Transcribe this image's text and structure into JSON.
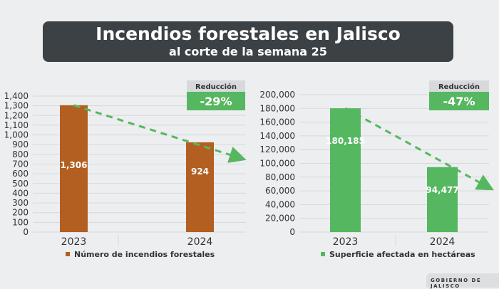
{
  "header": {
    "title": "Incendios forestales en Jalisco",
    "subtitle": "al corte de la semana 25"
  },
  "footer": {
    "label": "GOBIERNO DE JALISCO"
  },
  "chart_data": [
    {
      "type": "bar",
      "categories": [
        "2023",
        "2024"
      ],
      "values": [
        1306,
        924
      ],
      "data_labels": [
        "1,306",
        "924"
      ],
      "ylim": [
        0,
        1400
      ],
      "yticks": [
        0,
        100,
        200,
        300,
        400,
        500,
        600,
        700,
        800,
        900,
        1000,
        1100,
        1200,
        1300,
        1400
      ],
      "ytick_labels": [
        "0",
        "100",
        "200",
        "300",
        "400",
        "500",
        "600",
        "700",
        "800",
        "900",
        "1,000",
        "1,100",
        "1,200",
        "1,300",
        "1,400"
      ],
      "legend": "Número de incendios forestales",
      "legend_position": "bottom",
      "color": "#b35f22",
      "grid": true,
      "badge": {
        "label": "Reducción",
        "value": "-29%"
      }
    },
    {
      "type": "bar",
      "categories": [
        "2023",
        "2024"
      ],
      "values": [
        180185,
        94477
      ],
      "data_labels": [
        "180,185",
        "94,477"
      ],
      "ylim": [
        0,
        200000
      ],
      "yticks": [
        0,
        20000,
        40000,
        60000,
        80000,
        100000,
        120000,
        140000,
        160000,
        180000,
        200000
      ],
      "ytick_labels": [
        "0",
        "20,000",
        "40,000",
        "60,000",
        "80,000",
        "100,000",
        "120,000",
        "140,000",
        "160,000",
        "180,000",
        "200,000"
      ],
      "legend": "Superficie afectada en hectáreas",
      "legend_position": "bottom",
      "color": "#56b761",
      "grid": true,
      "badge": {
        "label": "Reducción",
        "value": "-47%"
      }
    }
  ],
  "colors": {
    "banner": "#3c4145",
    "trend_arrow": "#56b761",
    "badge_green": "#56b761",
    "badge_gray": "#d7d9db"
  }
}
